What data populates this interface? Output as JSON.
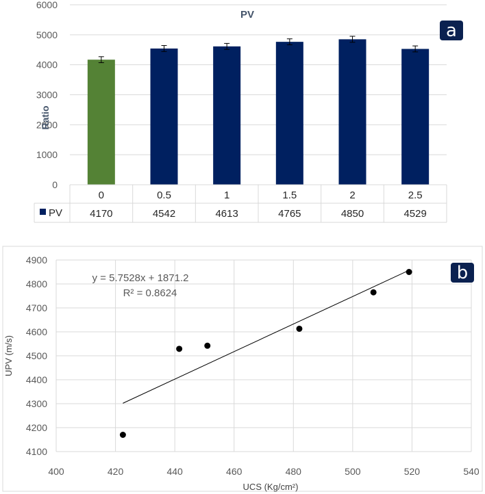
{
  "colors": {
    "bar_primary": "#002060",
    "bar_highlight": "#548235",
    "badge": "#0b2150",
    "grid": "#d9d9d9",
    "axis_text": "#595959",
    "point": "#000000"
  },
  "chart_data": [
    {
      "id": "a",
      "type": "bar",
      "panel_label": "a",
      "title": "PV",
      "ylabel": "Ratio",
      "xlabel": "",
      "ylim": [
        0,
        6000
      ],
      "yticks": [
        0,
        1000,
        2000,
        3000,
        4000,
        5000,
        6000
      ],
      "grid": true,
      "categories": [
        "0",
        "0.5",
        "1",
        "1.5",
        "2",
        "2.5"
      ],
      "series": [
        {
          "name": "PV",
          "values": [
            4170,
            4542,
            4613,
            4765,
            4850,
            4529
          ],
          "value_labels": [
            "4170",
            "4542",
            "4613",
            "4765",
            "4850",
            "4529"
          ],
          "error": [
            100,
            100,
            100,
            100,
            100,
            100
          ]
        }
      ],
      "highlight_index": 0,
      "data_table": true
    },
    {
      "id": "b",
      "type": "scatter",
      "panel_label": "b",
      "xlabel": "UCS (Kg/cm²)",
      "ylabel": "UPV (m/s)",
      "xlim": [
        400,
        540
      ],
      "ylim": [
        4100,
        4900
      ],
      "xticks": [
        400,
        420,
        440,
        460,
        480,
        500,
        520,
        540
      ],
      "yticks": [
        4100,
        4200,
        4300,
        4400,
        4500,
        4600,
        4700,
        4800,
        4900
      ],
      "grid": true,
      "points": [
        {
          "x": 422.5,
          "y": 4170
        },
        {
          "x": 441.5,
          "y": 4529
        },
        {
          "x": 451,
          "y": 4542
        },
        {
          "x": 482,
          "y": 4613
        },
        {
          "x": 507,
          "y": 4765
        },
        {
          "x": 519,
          "y": 4850
        }
      ],
      "trendline": {
        "slope": 5.7528,
        "intercept": 1871.2,
        "x_range": [
          422.5,
          519
        ],
        "equation": "y = 5.7528x + 1871.2",
        "r2": "R² = 0.8624"
      }
    }
  ]
}
